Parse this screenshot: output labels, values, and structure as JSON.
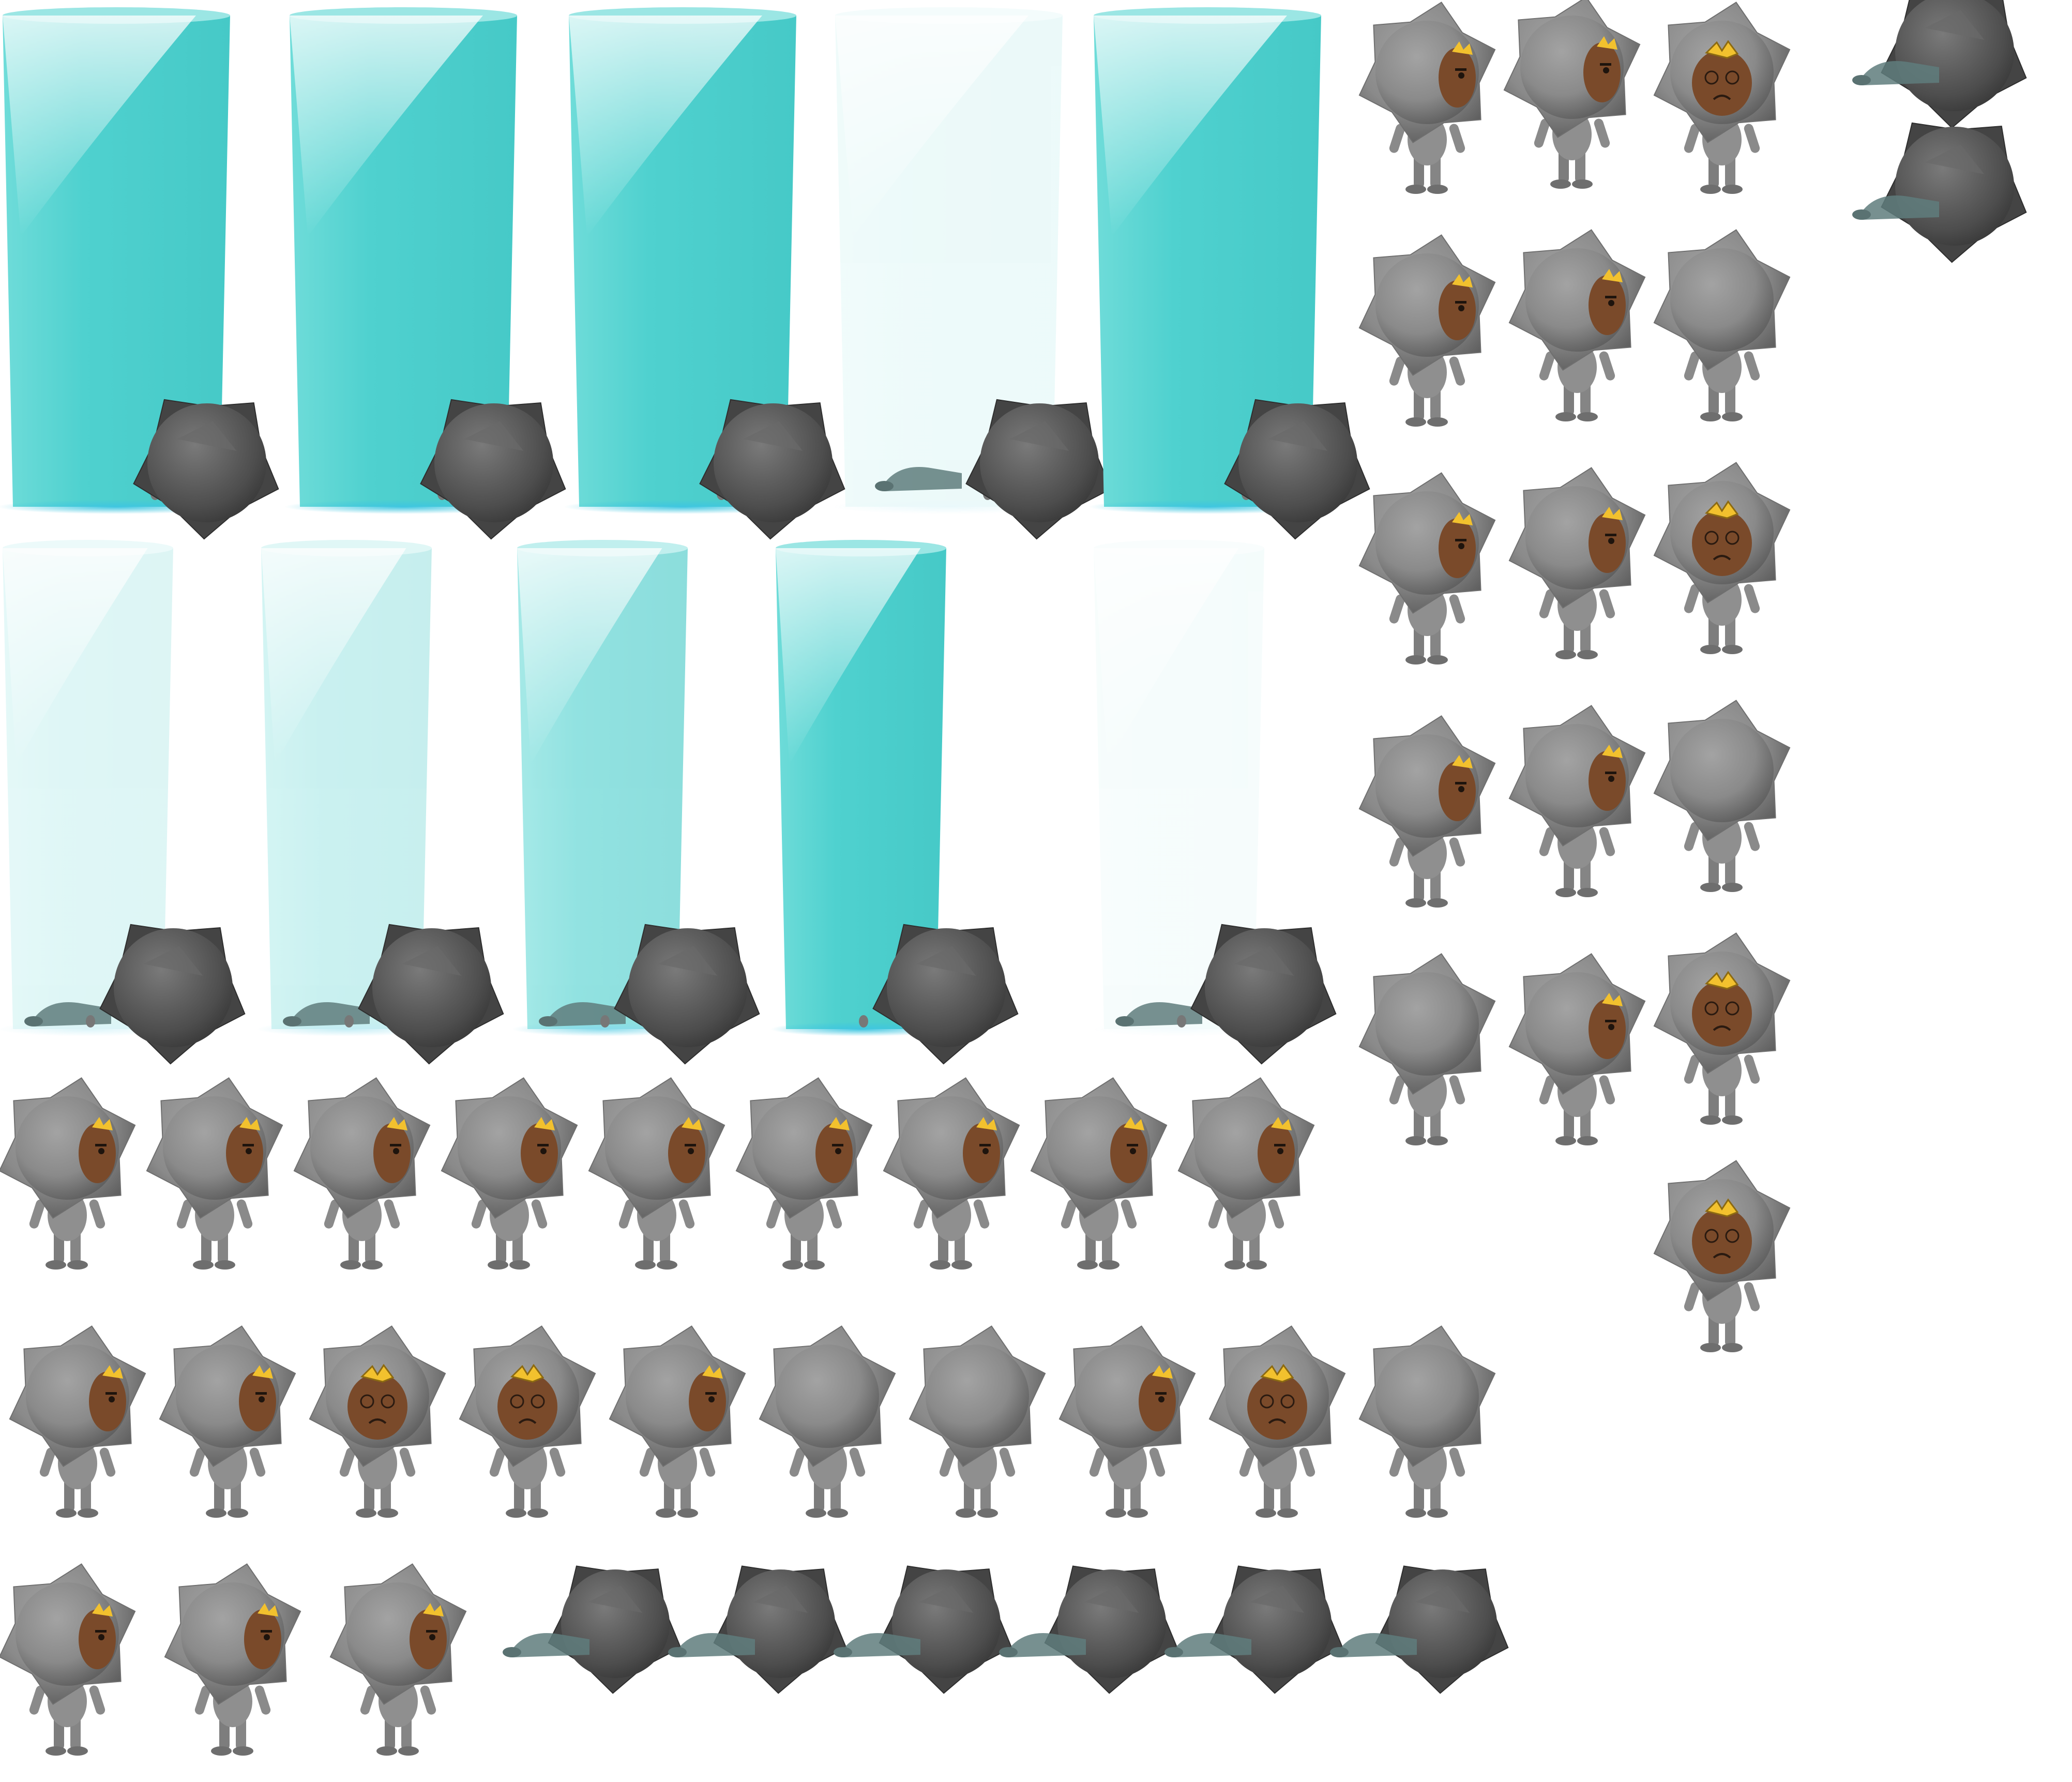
{
  "sheet": {
    "description_colors": {
      "background": "#ffffff",
      "beam": "#4fd1cf",
      "body": "#8d8d8d",
      "body_dark": "#4b4b4b",
      "face": "#7a4a2a",
      "hair": "#f2c12e"
    },
    "beam_frames": [
      {
        "opacity": 1.0
      },
      {
        "opacity": 1.0
      },
      {
        "opacity": 1.0
      },
      {
        "opacity": 0.1
      },
      {
        "opacity": 1.0
      },
      {
        "opacity": 0.18
      },
      {
        "opacity": 0.3
      },
      {
        "opacity": 0.62
      },
      {
        "opacity": 1.0
      },
      {
        "opacity": 0.05
      }
    ],
    "right_block_frames": [
      {
        "face": "side"
      },
      {
        "face": "side"
      },
      {
        "face": "front-dizzy"
      },
      {
        "face": "fallen-beam"
      },
      {
        "face": "fallen"
      },
      {
        "face": "side"
      },
      {
        "face": "side"
      },
      {
        "face": "back"
      },
      {
        "face": "side"
      },
      {
        "face": "side"
      },
      {
        "face": "front-dizzy"
      },
      {
        "face": "side"
      },
      {
        "face": "side"
      },
      {
        "face": "back"
      },
      {
        "face": "back"
      },
      {
        "face": "side"
      },
      {
        "face": "front-dizzy"
      },
      {
        "face": "front-dizzy"
      }
    ],
    "walk_row_1": 9,
    "walk_row_2": 10,
    "fall_row": 9
  }
}
